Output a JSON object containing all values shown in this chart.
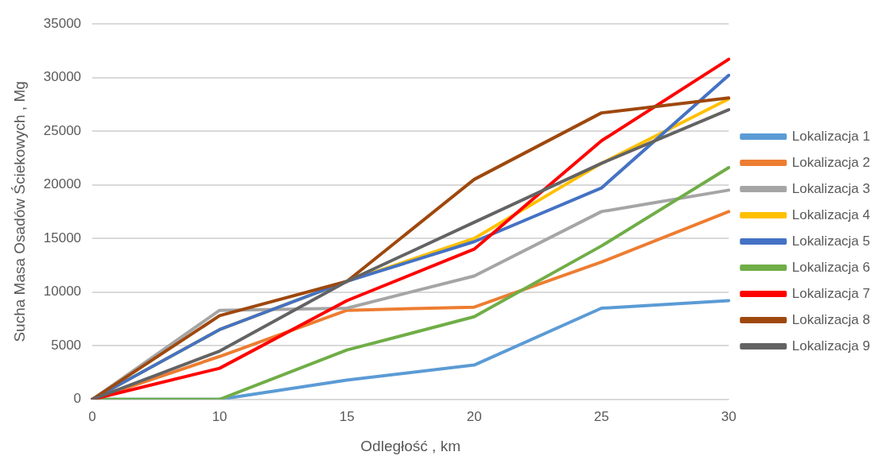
{
  "chart_data": {
    "type": "line",
    "xlabel": "Odległość , km",
    "ylabel": "Sucha Masa Osadów Ściekowych , Mg",
    "categories": [
      "0",
      "10",
      "15",
      "20",
      "25",
      "30"
    ],
    "ylim": [
      0,
      35000
    ],
    "yticks": [
      0,
      5000,
      10000,
      15000,
      20000,
      25000,
      30000,
      35000
    ],
    "grid": "y",
    "legend": "right",
    "marker": "none",
    "line_style": "solid",
    "series": [
      {
        "name": "Lokalizacja 1",
        "color": "#5b9bd5",
        "values": [
          0,
          0,
          1800,
          3200,
          8500,
          9200
        ]
      },
      {
        "name": "Lokalizacja 2",
        "color": "#ed7d31",
        "values": [
          0,
          4000,
          8300,
          8600,
          12800,
          17500
        ]
      },
      {
        "name": "Lokalizacja 3",
        "color": "#a5a5a5",
        "values": [
          0,
          8300,
          8500,
          11500,
          17500,
          19500
        ]
      },
      {
        "name": "Lokalizacja 4",
        "color": "#ffc000",
        "values": [
          0,
          6500,
          11000,
          15000,
          22000,
          28000
        ]
      },
      {
        "name": "Lokalizacja 5",
        "color": "#4472c4",
        "values": [
          0,
          6500,
          11000,
          14700,
          19700,
          30200
        ]
      },
      {
        "name": "Lokalizacja 6",
        "color": "#70ad47",
        "values": [
          0,
          0,
          4600,
          7700,
          14300,
          21600
        ]
      },
      {
        "name": "Lokalizacja 7",
        "color": "#ff0000",
        "values": [
          0,
          2900,
          9200,
          14000,
          24100,
          31700
        ]
      },
      {
        "name": "Lokalizacja 8",
        "color": "#9e480e",
        "values": [
          0,
          7800,
          11000,
          20500,
          26700,
          28100
        ]
      },
      {
        "name": "Lokalizacja 9",
        "color": "#636363",
        "values": [
          0,
          4500,
          11000,
          16500,
          22000,
          27000
        ]
      }
    ]
  }
}
